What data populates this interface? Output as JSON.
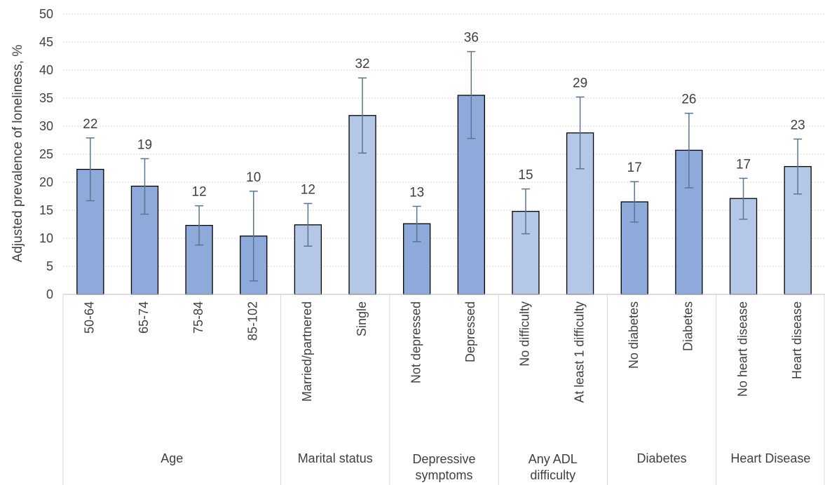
{
  "chart_data": {
    "type": "bar",
    "title": "",
    "ylabel": "Adjusted prevalence of loneliness, %",
    "xlabel": "",
    "ylim": [
      0,
      50
    ],
    "yticks": [
      0,
      5,
      10,
      15,
      20,
      25,
      30,
      35,
      40,
      45,
      50
    ],
    "grid": "horizontal dotted",
    "colors": {
      "dark": "#8eaadb",
      "light": "#b4c7e7",
      "error_bar": "#5b7590",
      "text": "#404040"
    },
    "categories": [
      "50-64",
      "65-74",
      "75-84",
      "85-102",
      "Married/partnered",
      "Single",
      "Not depressed",
      "Depressed",
      "No difficulty",
      "At least 1 difficulty",
      "No diabetes",
      "Diabetes",
      "No heart disease",
      "Heart disease"
    ],
    "values": [
      22.3,
      19.3,
      12.3,
      10.4,
      12.4,
      31.9,
      12.6,
      35.5,
      14.8,
      28.8,
      16.5,
      25.7,
      17.1,
      22.8
    ],
    "data_labels": [
      "22",
      "19",
      "12",
      "10",
      "12",
      "32",
      "13",
      "36",
      "15",
      "29",
      "17",
      "26",
      "17",
      "23"
    ],
    "error_low": [
      16.7,
      14.3,
      8.8,
      2.4,
      8.6,
      25.2,
      9.4,
      27.8,
      10.8,
      22.4,
      12.9,
      19.0,
      13.4,
      17.9
    ],
    "error_high": [
      27.9,
      24.2,
      15.8,
      18.4,
      16.2,
      38.6,
      15.7,
      43.3,
      18.8,
      35.2,
      20.1,
      32.3,
      20.7,
      27.7
    ],
    "shades": [
      "dark",
      "dark",
      "dark",
      "dark",
      "light",
      "light",
      "dark",
      "dark",
      "light",
      "light",
      "dark",
      "dark",
      "light",
      "light"
    ],
    "groups": [
      {
        "label": "Age",
        "start": 0,
        "count": 4
      },
      {
        "label": "Marital status",
        "start": 4,
        "count": 2
      },
      {
        "label": "Depressive symptoms",
        "start": 6,
        "count": 2
      },
      {
        "label": "Any ADL difficulty",
        "start": 8,
        "count": 2
      },
      {
        "label": "Diabetes",
        "start": 10,
        "count": 2
      },
      {
        "label": "Heart Disease",
        "start": 12,
        "count": 2
      }
    ]
  }
}
